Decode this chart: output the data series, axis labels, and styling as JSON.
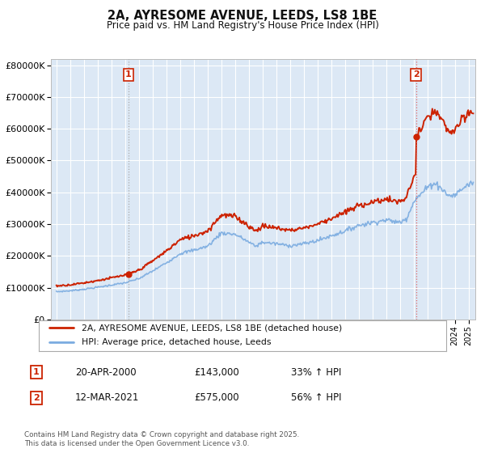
{
  "title": "2A, AYRESOME AVENUE, LEEDS, LS8 1BE",
  "subtitle": "Price paid vs. HM Land Registry's House Price Index (HPI)",
  "legend_line1": "2A, AYRESOME AVENUE, LEEDS, LS8 1BE (detached house)",
  "legend_line2": "HPI: Average price, detached house, Leeds",
  "footnote": "Contains HM Land Registry data © Crown copyright and database right 2025.\nThis data is licensed under the Open Government Licence v3.0.",
  "table_rows": [
    {
      "num": "1",
      "date": "20-APR-2000",
      "price": "£143,000",
      "change": "33% ↑ HPI"
    },
    {
      "num": "2",
      "date": "12-MAR-2021",
      "price": "£575,000",
      "change": "56% ↑ HPI"
    }
  ],
  "sale1": {
    "year": 2000.25,
    "price": 143000
  },
  "sale2": {
    "year": 2021.18,
    "price": 575000
  },
  "red_line_color": "#cc2200",
  "blue_line_color": "#7aabe0",
  "vline1_color": "#aaaaaa",
  "vline2_color": "#dd6666",
  "background_color": "#ffffff",
  "plot_bg_color": "#dce8f5",
  "grid_color": "#ffffff",
  "ylim": [
    0,
    820000
  ],
  "xlim": [
    1994.6,
    2025.5
  ]
}
